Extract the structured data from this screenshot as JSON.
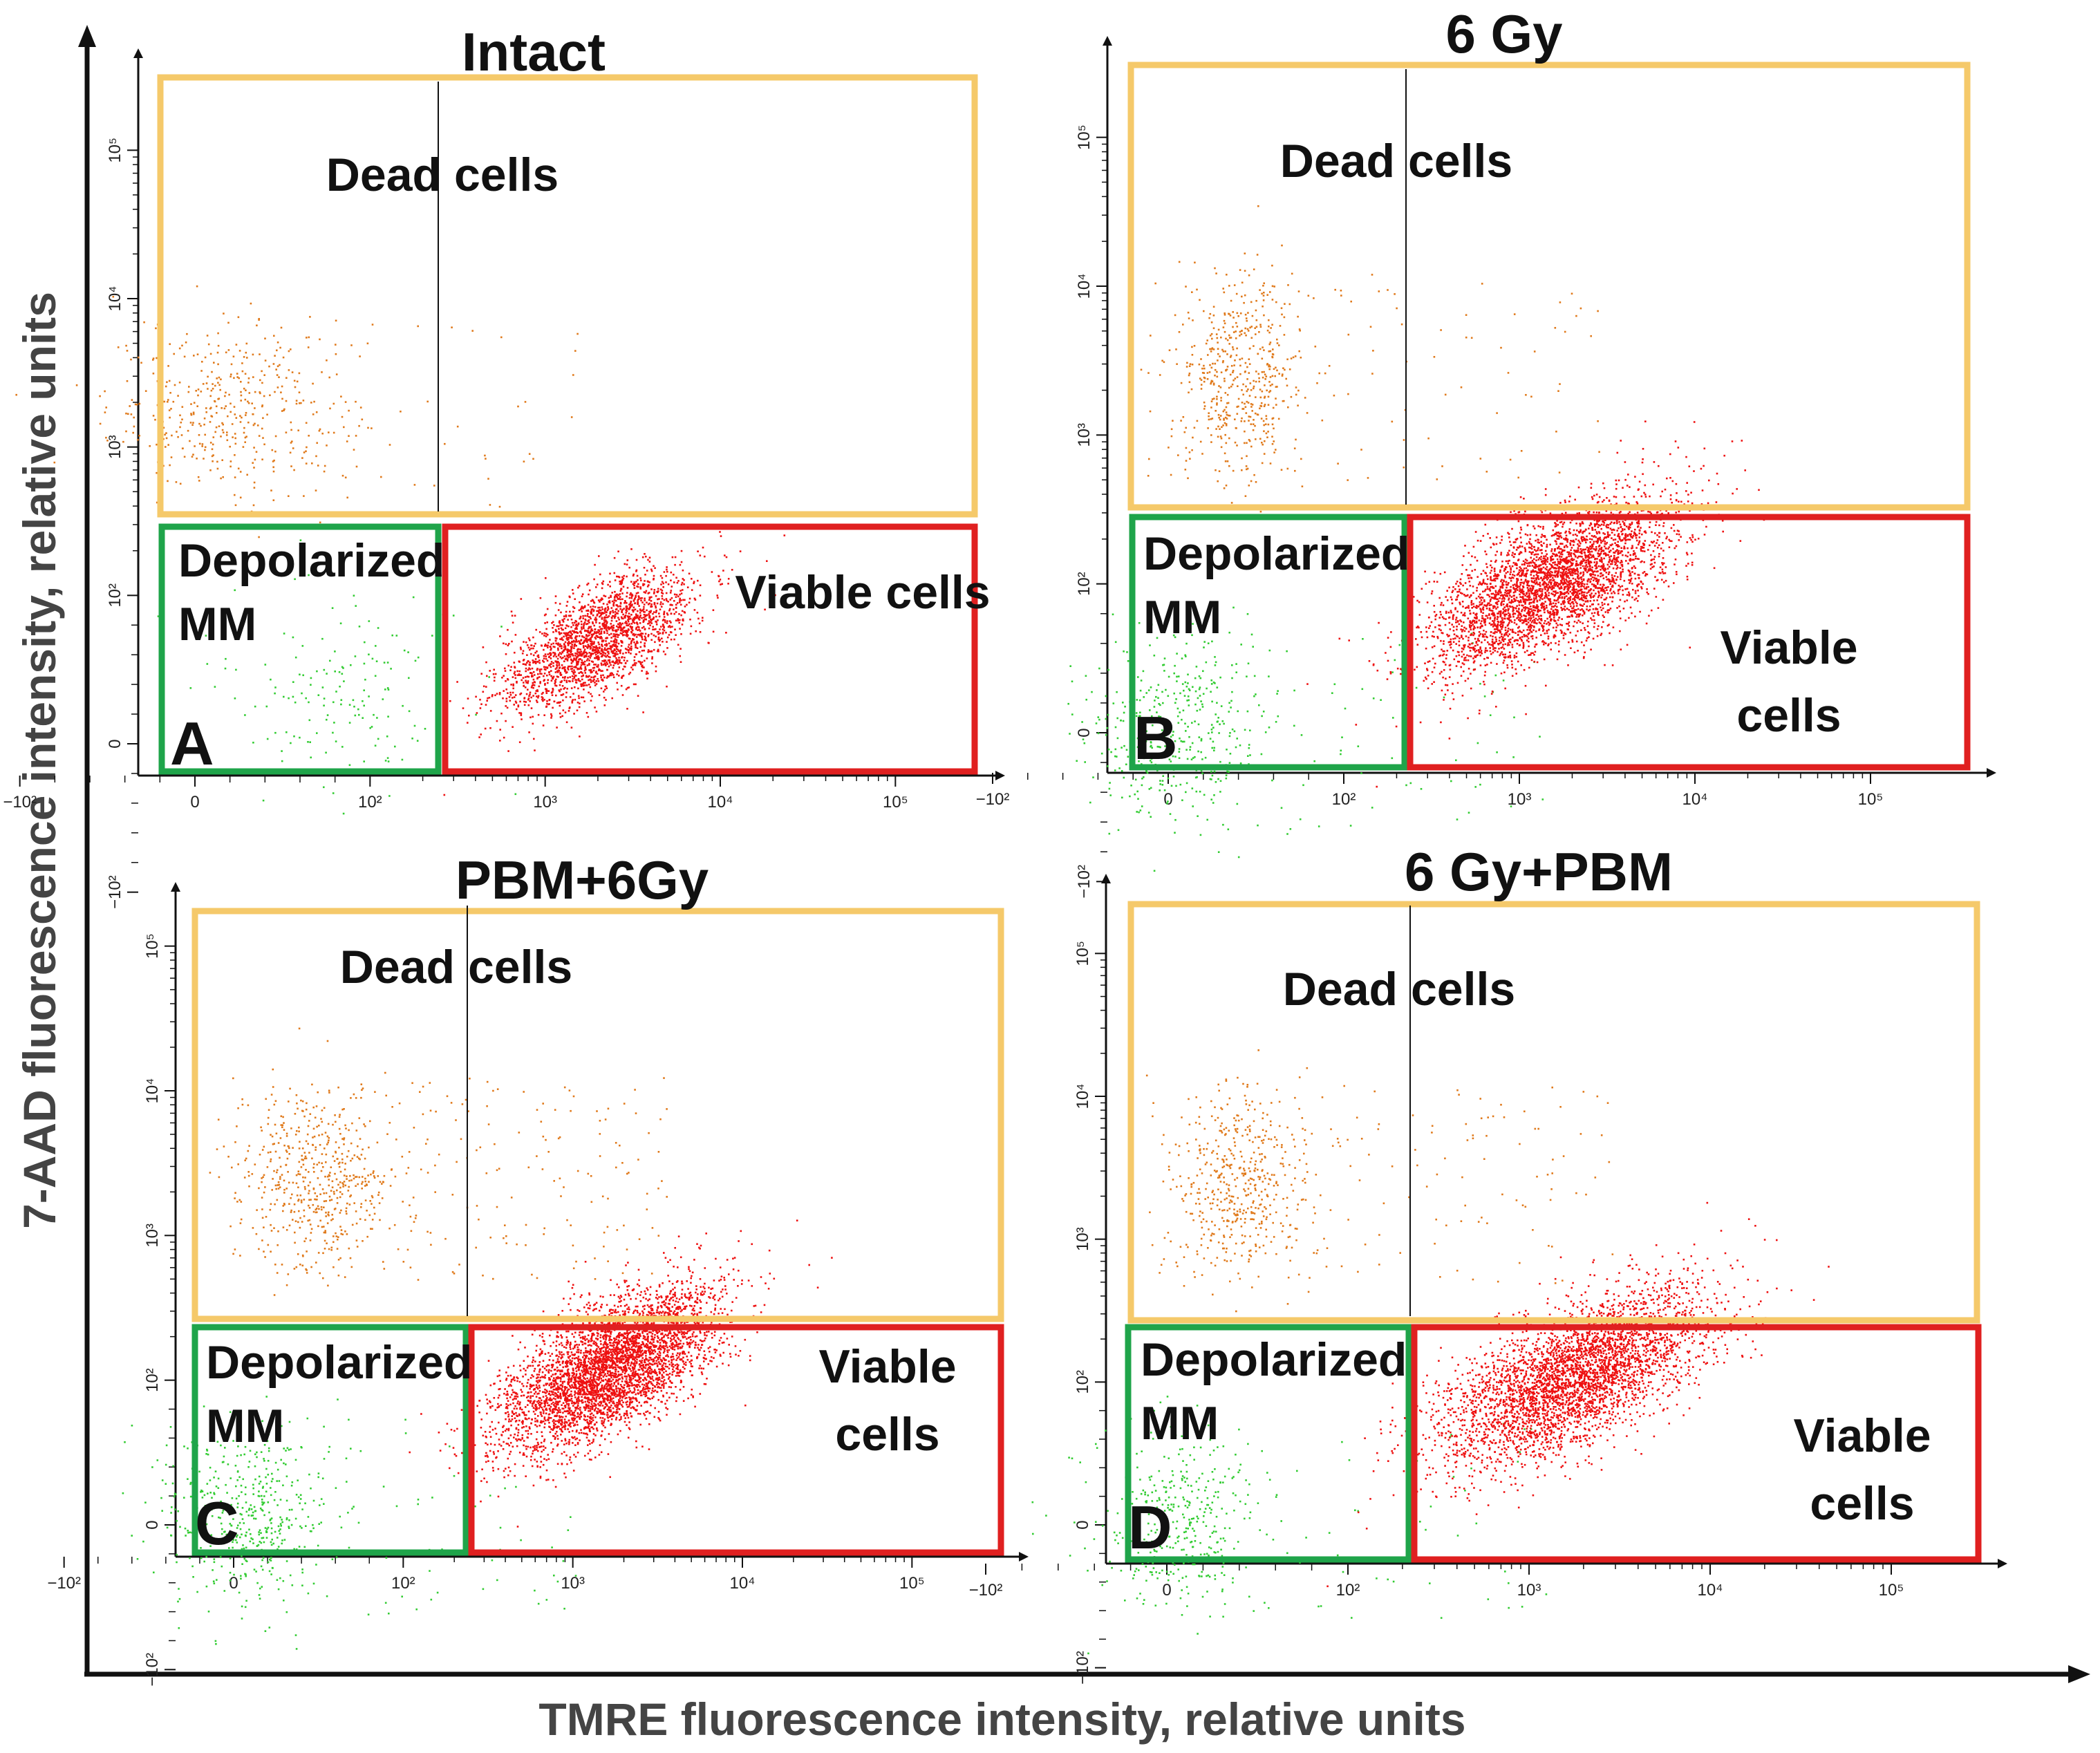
{
  "colors": {
    "dead_gate": "#f5c96a",
    "viable_gate": "#e02020",
    "depolarized_gate": "#1fa44a",
    "dead_points": "#e07a1c",
    "viable_points": "#ee1111",
    "depolarized_points": "#33cc33",
    "axis": "#111111"
  },
  "chart_data": {
    "type": "scatter",
    "title": "",
    "xlabel": "TMRE fluorescence intensity, relative units",
    "ylabel": "7-AAD fluorescence intensity, relative units",
    "axis_scale": "biexponential",
    "x_ticks": [
      "−10²",
      "0",
      "10²",
      "10³",
      "10⁴",
      "10⁵"
    ],
    "y_ticks": [
      "−10²",
      "0",
      "10²",
      "10³",
      "10⁴",
      "10⁵"
    ],
    "gates": {
      "dead": "Dead cells",
      "depolarized": "Depolarized MM",
      "viable": "Viable cells"
    },
    "panels": [
      {
        "letter": "A",
        "title": "Intact",
        "viable_label": "Viable cells",
        "populations": [
          {
            "name": "Dead cells",
            "count": 420,
            "center": [
              20,
              1800
            ],
            "spread": [
              0.35,
              0.28
            ],
            "sparse": 60
          },
          {
            "name": "Depolarized MM",
            "count": 160,
            "center": [
              80,
              40
            ],
            "spread": [
              0.35,
              0.35
            ],
            "sparse": 0
          },
          {
            "name": "Viable cells",
            "count": 2200,
            "center": [
              2000,
              70
            ],
            "spread": [
              0.28,
              0.18
            ],
            "sparse": 0
          }
        ]
      },
      {
        "letter": "B",
        "title": "6 Gy",
        "viable_label": "Viable cells",
        "populations": [
          {
            "name": "Dead cells",
            "count": 520,
            "center": [
              40,
              2500
            ],
            "spread": [
              0.18,
              0.35
            ],
            "sparse": 90
          },
          {
            "name": "Depolarized MM",
            "count": 420,
            "center": [
              5,
              5
            ],
            "spread": [
              0.25,
              0.3
            ],
            "sparse": 80
          },
          {
            "name": "Viable cells",
            "count": 3600,
            "center": [
              1500,
              100
            ],
            "spread": [
              0.35,
              0.22
            ],
            "sparse": 0
          }
        ]
      },
      {
        "letter": "C",
        "title": "PBM+6Gy",
        "viable_label": "Viable cells",
        "populations": [
          {
            "name": "Dead cells",
            "count": 480,
            "center": [
              50,
              2500
            ],
            "spread": [
              0.22,
              0.3
            ],
            "sparse": 240
          },
          {
            "name": "Depolarized MM",
            "count": 460,
            "center": [
              5,
              5
            ],
            "spread": [
              0.25,
              0.3
            ],
            "sparse": 90
          },
          {
            "name": "Viable cells",
            "count": 4200,
            "center": [
              1600,
              120
            ],
            "spread": [
              0.32,
              0.22
            ],
            "sparse": 0
          }
        ]
      },
      {
        "letter": "D",
        "title": "6 Gy+PBM",
        "viable_label": "Viable cells",
        "populations": [
          {
            "name": "Dead cells",
            "count": 460,
            "center": [
              40,
              2500
            ],
            "spread": [
              0.18,
              0.35
            ],
            "sparse": 160
          },
          {
            "name": "Depolarized MM",
            "count": 360,
            "center": [
              5,
              5
            ],
            "spread": [
              0.25,
              0.3
            ],
            "sparse": 70
          },
          {
            "name": "Viable cells",
            "count": 3800,
            "center": [
              1800,
              110
            ],
            "spread": [
              0.36,
              0.24
            ],
            "sparse": 0
          }
        ]
      }
    ]
  }
}
